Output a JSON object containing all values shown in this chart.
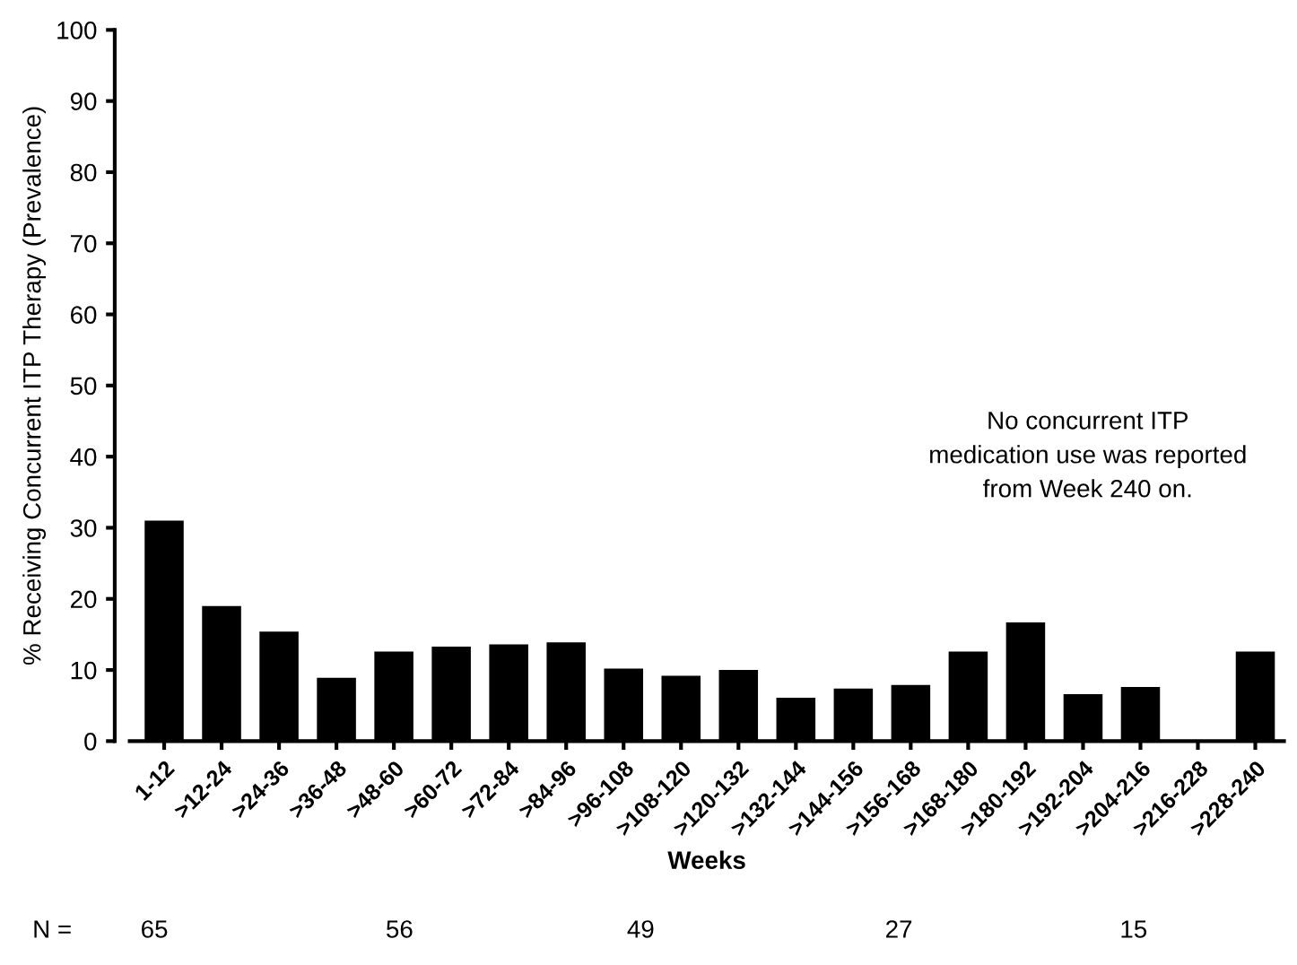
{
  "chart_data": {
    "type": "bar",
    "xlabel": "Weeks",
    "ylabel": "% Receiving Concurrent ITP Therapy (Prevalence)",
    "categories": [
      "1-12",
      ">12-24",
      ">24-36",
      ">36-48",
      ">48-60",
      ">60-72",
      ">72-84",
      ">84-96",
      ">96-108",
      ">108-120",
      ">120-132",
      ">132-144",
      ">144-156",
      ">156-168",
      ">168-180",
      ">180-192",
      ">192-204",
      ">204-216",
      ">216-228",
      ">228-240"
    ],
    "values": [
      31,
      19,
      15.4,
      8.9,
      12.6,
      13.3,
      13.6,
      13.9,
      10.2,
      9.2,
      10,
      6.1,
      7.4,
      7.9,
      12.6,
      16.7,
      6.6,
      7.6,
      0,
      12.6
    ],
    "color": "#000000",
    "ylim": [
      0,
      100
    ],
    "yticks": [
      0,
      10,
      20,
      30,
      40,
      50,
      60,
      70,
      80,
      90,
      100
    ],
    "grid": false,
    "legend": false,
    "annotations": [
      "No concurrent ITP\nmedication use was reported\nfrom Week 240 on.",
      "N =",
      "65",
      "56",
      "49",
      "27",
      "15"
    ]
  }
}
